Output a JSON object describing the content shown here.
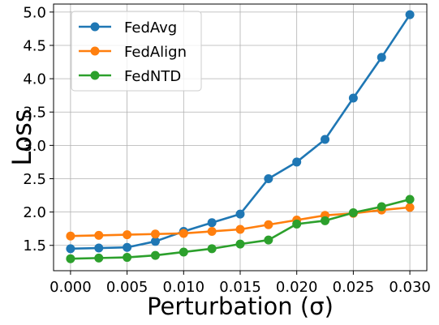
{
  "chart_data": {
    "type": "line",
    "title": "",
    "xlabel": "Perturbation (σ)",
    "ylabel": "Loss",
    "xlim": [
      -0.0015,
      0.0315
    ],
    "ylim": [
      1.12,
      5.12
    ],
    "grid": true,
    "legend_position": "top-left",
    "x": [
      0.0,
      0.0025,
      0.005,
      0.0075,
      0.01,
      0.0125,
      0.015,
      0.0175,
      0.02,
      0.0225,
      0.025,
      0.0275,
      0.03
    ],
    "x_ticks": [
      0.0,
      0.005,
      0.01,
      0.015,
      0.02,
      0.025,
      0.03
    ],
    "x_tick_labels": [
      "0.000",
      "0.005",
      "0.010",
      "0.015",
      "0.020",
      "0.025",
      "0.030"
    ],
    "y_ticks": [
      1.5,
      2.0,
      2.5,
      3.0,
      3.5,
      4.0,
      4.5,
      5.0
    ],
    "y_tick_labels": [
      "1.5",
      "2.0",
      "2.5",
      "3.0",
      "3.5",
      "4.0",
      "4.5",
      "5.0"
    ],
    "series": [
      {
        "name": "FedAvg",
        "color": "#1f77b4",
        "values": [
          1.45,
          1.46,
          1.47,
          1.56,
          1.71,
          1.84,
          1.97,
          2.5,
          2.75,
          3.09,
          3.71,
          4.32,
          4.96
        ]
      },
      {
        "name": "FedAlign",
        "color": "#ff7f0e",
        "values": [
          1.64,
          1.65,
          1.66,
          1.67,
          1.68,
          1.71,
          1.74,
          1.81,
          1.88,
          1.95,
          1.98,
          2.03,
          2.07
        ]
      },
      {
        "name": "FedNTD",
        "color": "#2ca02c",
        "values": [
          1.3,
          1.31,
          1.32,
          1.35,
          1.4,
          1.45,
          1.52,
          1.58,
          1.82,
          1.87,
          1.99,
          2.08,
          2.19
        ]
      }
    ]
  }
}
